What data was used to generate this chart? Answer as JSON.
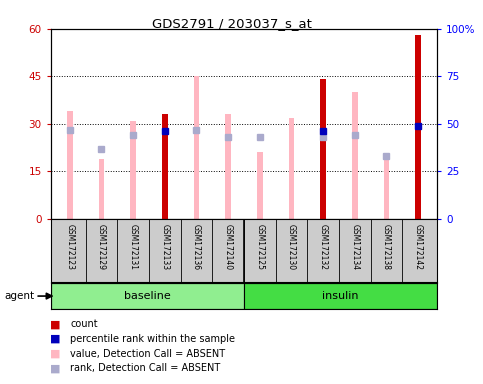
{
  "title": "GDS2791 / 203037_s_at",
  "samples": [
    "GSM172123",
    "GSM172129",
    "GSM172131",
    "GSM172133",
    "GSM172136",
    "GSM172140",
    "GSM172125",
    "GSM172130",
    "GSM172132",
    "GSM172134",
    "GSM172138",
    "GSM172142"
  ],
  "groups": [
    "baseline",
    "baseline",
    "baseline",
    "baseline",
    "baseline",
    "baseline",
    "insulin",
    "insulin",
    "insulin",
    "insulin",
    "insulin",
    "insulin"
  ],
  "count_values": [
    null,
    null,
    null,
    33,
    null,
    null,
    null,
    null,
    44,
    null,
    null,
    58
  ],
  "percentile_values": [
    null,
    null,
    null,
    46,
    null,
    null,
    null,
    null,
    46,
    null,
    null,
    49
  ],
  "absent_value_bars": [
    34,
    19,
    31,
    null,
    45,
    33,
    21,
    32,
    null,
    40,
    20,
    null
  ],
  "absent_rank_dots": [
    47,
    37,
    44,
    null,
    47,
    43,
    43,
    null,
    43,
    44,
    33,
    null
  ],
  "ylim_left": [
    0,
    60
  ],
  "ylim_right": [
    0,
    100
  ],
  "yticks_left": [
    0,
    15,
    30,
    45,
    60
  ],
  "ytick_labels_left": [
    "0",
    "15",
    "30",
    "45",
    "60"
  ],
  "ytick_labels_right": [
    "0",
    "25",
    "50",
    "75",
    "100%"
  ],
  "count_color": "#CC0000",
  "percentile_color": "#0000BB",
  "absent_value_color": "#FFB6C1",
  "absent_rank_color": "#AAAACC",
  "grid_color": "#000000",
  "background_color": "#FFFFFF",
  "plot_bg_color": "#FFFFFF",
  "baseline_label": "baseline",
  "insulin_label": "insulin",
  "group_bar_color_baseline": "#90EE90",
  "group_bar_color_insulin": "#44DD44",
  "agent_label": "agent",
  "legend_items": [
    "count",
    "percentile rank within the sample",
    "value, Detection Call = ABSENT",
    "rank, Detection Call = ABSENT"
  ]
}
